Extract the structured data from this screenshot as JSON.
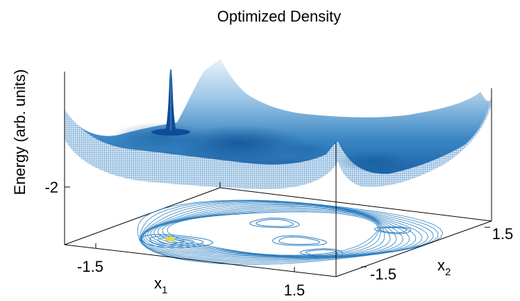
{
  "chart_data": {
    "type": "surface",
    "title": "Optimized Density",
    "zlabel": "Energy (arb. units)",
    "xlabel": "x",
    "xlabel_sub": "1",
    "ylabel": "x",
    "ylabel_sub": "2",
    "x_ticks": [
      "-1.5",
      "1.5"
    ],
    "y_ticks": [
      "-1.5",
      "1.5"
    ],
    "z_ticks": [
      "-2"
    ],
    "x_range": [
      -2,
      2
    ],
    "y_range": [
      -2,
      2
    ],
    "density_peak": {
      "x": -1.2,
      "y": -0.5
    },
    "colors": {
      "surface_dark": "#0b4f94",
      "surface_light": "#dcecf8",
      "contour": "#2e7fc0",
      "density": "#0d4c98",
      "density_marker": "#e6dc2a"
    }
  }
}
